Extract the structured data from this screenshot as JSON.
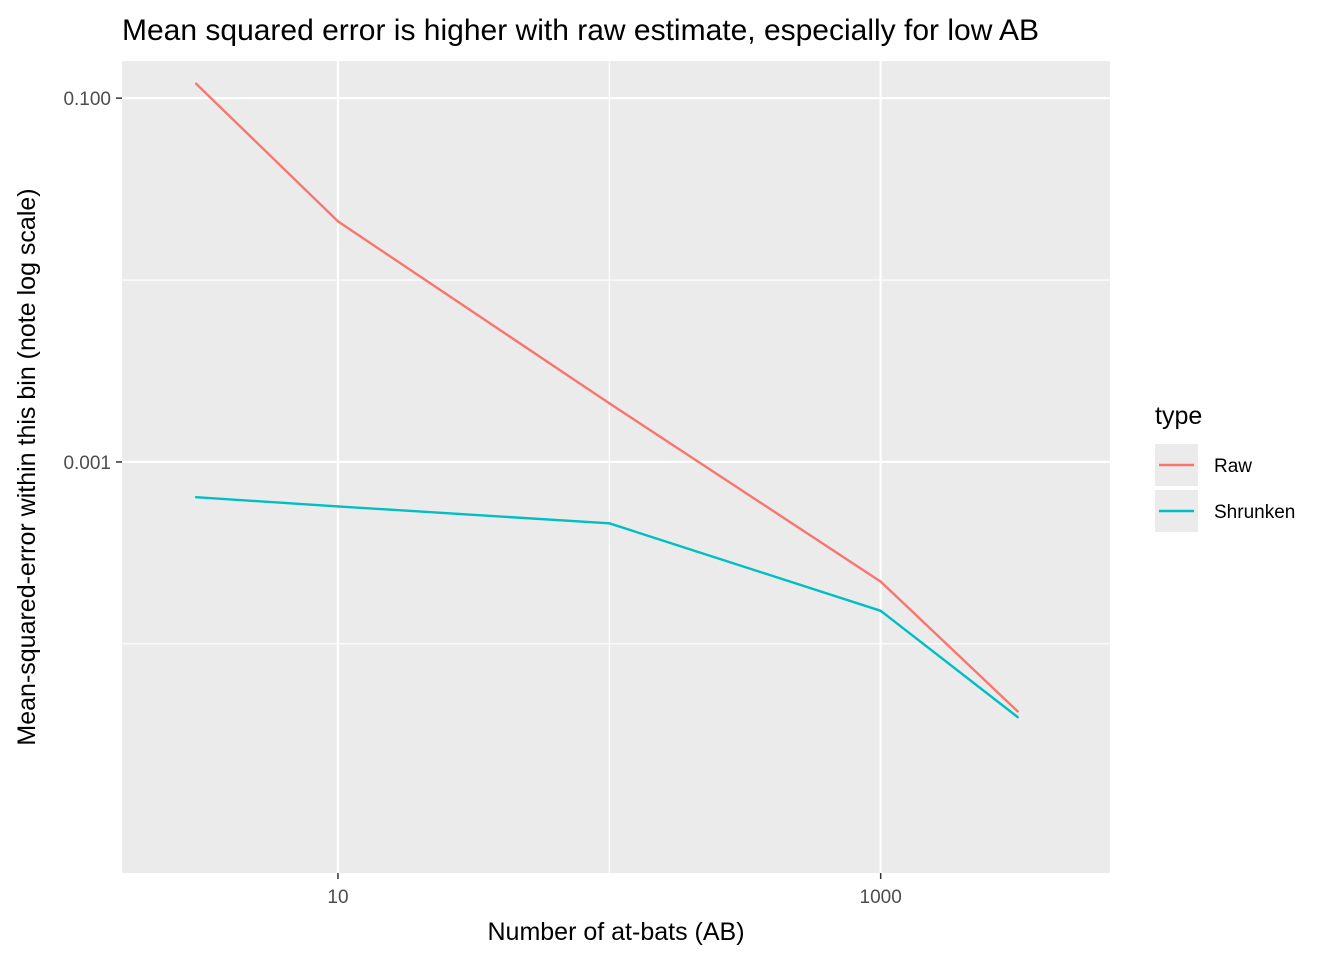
{
  "chart_data": {
    "type": "line",
    "title": "Mean squared error is higher with raw estimate, especially for low AB",
    "xlabel": "Number of at-bats (AB)",
    "ylabel": "Mean-squared-error within this bin (note log scale)",
    "x_scale": "log10",
    "y_scale": "log10",
    "xlim": [
      1.6,
      7000
    ],
    "ylim": [
      5.5e-06,
      0.16
    ],
    "x_ticks": [
      {
        "value": 10,
        "label": "10"
      },
      {
        "value": 1000,
        "label": "1000"
      }
    ],
    "y_ticks": [
      {
        "value": 0.1,
        "label": "0.100"
      },
      {
        "value": 0.001,
        "label": "0.001"
      }
    ],
    "x_minor_ticks": [
      1,
      100,
      10000
    ],
    "y_minor_ticks": [
      0.01,
      0.0001
    ],
    "grid": true,
    "legend": {
      "title": "type",
      "placement": "right"
    },
    "x": [
      3,
      10,
      100,
      1000,
      3200
    ],
    "series": [
      {
        "name": "Raw",
        "color": "#F8766D",
        "values": [
          0.12,
          0.021,
          0.0021,
          0.00022,
          4.25e-05
        ]
      },
      {
        "name": "Shrunken",
        "color": "#00BFC4",
        "values": [
          0.00064,
          0.00057,
          0.00046,
          0.000152,
          3.95e-05
        ]
      }
    ]
  }
}
